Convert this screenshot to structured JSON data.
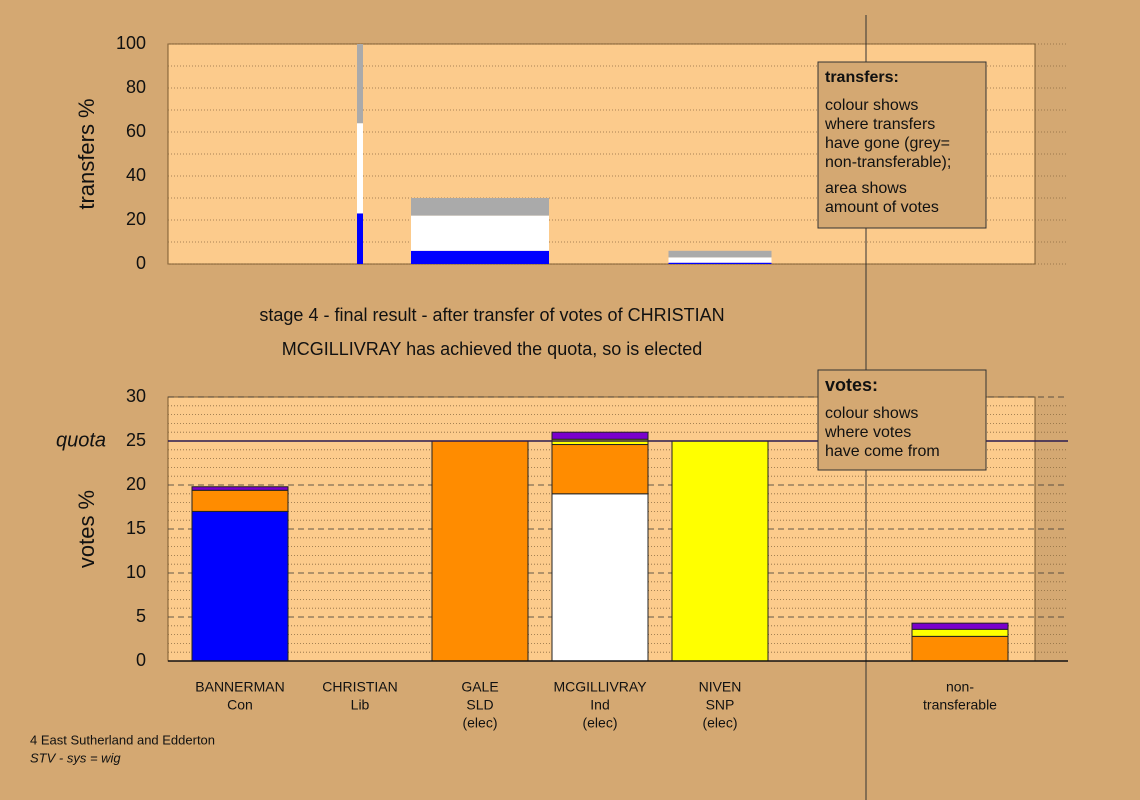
{
  "chart_data": [
    {
      "type": "bar",
      "stacked": true,
      "ylabel": "transfers %",
      "ylim": [
        0,
        100
      ],
      "yticks": [
        0,
        20,
        40,
        60,
        80,
        100
      ],
      "series": [
        {
          "color": "#0000ff",
          "values": [
            null,
            23,
            6,
            null,
            0.6,
            null,
            null
          ]
        },
        {
          "color": "#ffffff",
          "values": [
            null,
            41,
            16,
            null,
            2.4,
            null,
            null
          ]
        },
        {
          "color": "#aaaaaa",
          "values": [
            null,
            36,
            8,
            null,
            3,
            null,
            null
          ]
        }
      ],
      "annotation": {
        "title": "transfers:",
        "paragraphs": [
          [
            "colour shows",
            "where transfers",
            "have gone (grey=",
            "non-transferable);"
          ],
          [
            "area shows",
            "amount of votes"
          ]
        ]
      }
    },
    {
      "type": "bar",
      "stacked": true,
      "ylabel": "votes %",
      "categories": [
        [
          "BANNERMAN",
          "Con"
        ],
        [
          "CHRISTIAN",
          "Lib"
        ],
        [
          "GALE",
          "SLD",
          "(elec)"
        ],
        [
          "MCGILLIVRAY",
          "Ind",
          "(elec)"
        ],
        [
          "NIVEN",
          "SNP",
          "(elec)"
        ],
        null,
        [
          "non-",
          "transferable"
        ]
      ],
      "ylim": [
        0,
        30
      ],
      "yticks": [
        0,
        5,
        10,
        15,
        20,
        25,
        30
      ],
      "quota": {
        "value": 25,
        "label": "quota"
      },
      "series": [
        {
          "color": "#0000ff",
          "values": [
            17,
            0,
            0,
            0,
            0,
            null,
            0
          ]
        },
        {
          "color": "#ffffff",
          "values": [
            0,
            0,
            0,
            19,
            0,
            null,
            0
          ]
        },
        {
          "color": "#ff8c00",
          "values": [
            2.4,
            0,
            25,
            5.6,
            0,
            null,
            2.8
          ]
        },
        {
          "color": "#ffff00",
          "values": [
            0,
            0,
            0,
            0.6,
            25,
            null,
            0.8
          ]
        },
        {
          "color": "#7a00cc",
          "values": [
            0.4,
            0,
            0,
            0.8,
            0,
            null,
            0.7
          ]
        }
      ],
      "annotation": {
        "title": "votes:",
        "paragraphs": [
          [
            "colour shows",
            "where votes",
            "have come from"
          ]
        ]
      }
    }
  ],
  "headline": [
    "stage 4 - final result - after transfer of votes of CHRISTIAN",
    "MCGILLIVRAY has achieved the quota, so is elected"
  ],
  "footer": {
    "area": "4 East Sutherland and Edderton",
    "system": "STV - sys = wig"
  }
}
